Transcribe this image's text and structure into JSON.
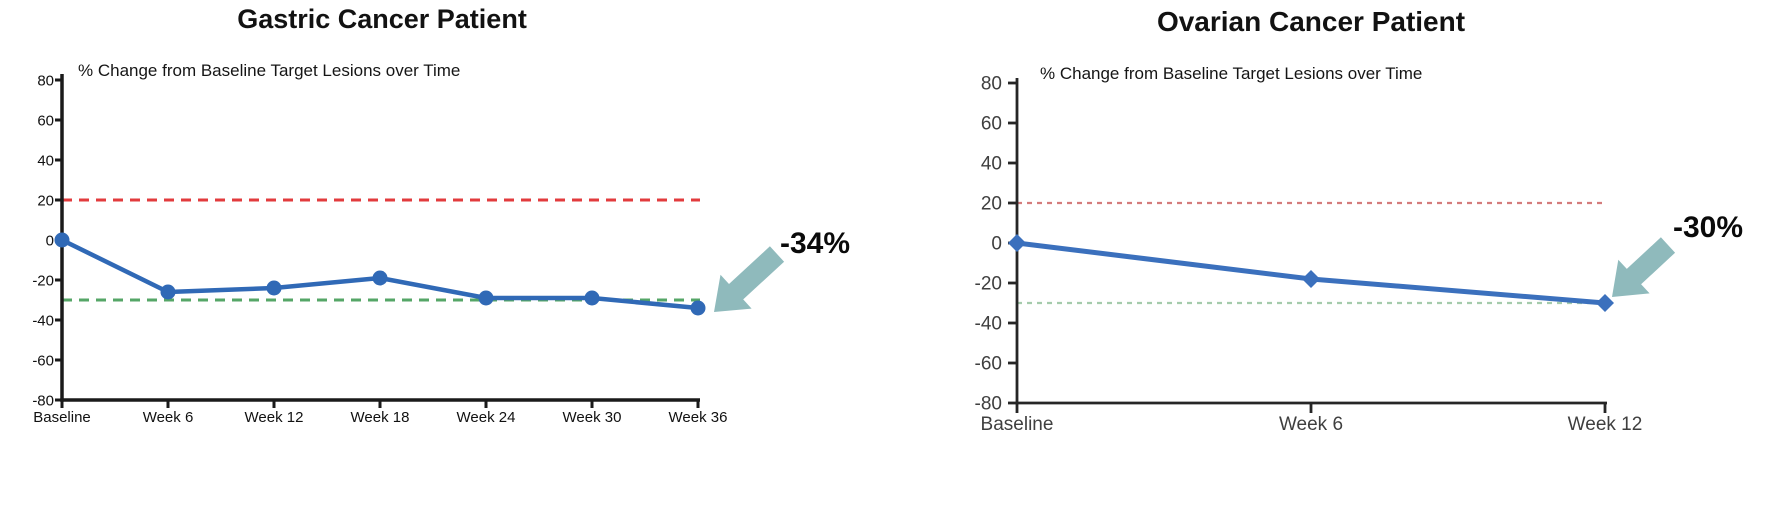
{
  "chart_data": [
    {
      "type": "line",
      "title": "Gastric Cancer Patient",
      "subtitle": "% Change from Baseline Target Lesions over Time",
      "categories": [
        "Baseline",
        "Week 6",
        "Week 12",
        "Week 18",
        "Week 24",
        "Week 30",
        "Week 36"
      ],
      "series": [
        {
          "color": "#3069b6",
          "values": [
            0,
            -26,
            -24,
            -19,
            -29,
            -29,
            -34
          ]
        }
      ],
      "ylim": [
        -80,
        80
      ],
      "yticks": [
        80,
        60,
        40,
        20,
        0,
        -20,
        -40,
        -60,
        -80
      ],
      "reference_lines": [
        {
          "value": 20,
          "color": "#e23b3d",
          "style": "dashed"
        },
        {
          "value": -30,
          "color": "#55a667",
          "style": "dashed"
        }
      ],
      "grid": false,
      "legend": false,
      "annotation": {
        "label": "-34%",
        "points_to_category": "Week 36",
        "arrow_color": "#8fbabc"
      }
    },
    {
      "type": "line",
      "title": "Ovarian Cancer Patient",
      "subtitle": "% Change from Baseline Target Lesions over Time",
      "categories": [
        "Baseline",
        "Week 6",
        "Week 12"
      ],
      "series": [
        {
          "color": "#3b70bd",
          "values": [
            0,
            -18,
            -30
          ]
        }
      ],
      "ylim": [
        -80,
        80
      ],
      "yticks": [
        80,
        60,
        40,
        20,
        0,
        -20,
        -40,
        -60,
        -80
      ],
      "reference_lines": [
        {
          "value": 20,
          "color": "#d47c7c",
          "style": "dashed"
        },
        {
          "value": -30,
          "color": "#a5cbac",
          "style": "dashed"
        }
      ],
      "grid": false,
      "legend": false,
      "annotation": {
        "label": "-30%",
        "points_to_category": "Week 12",
        "arrow_color": "#8fbabc"
      }
    }
  ]
}
